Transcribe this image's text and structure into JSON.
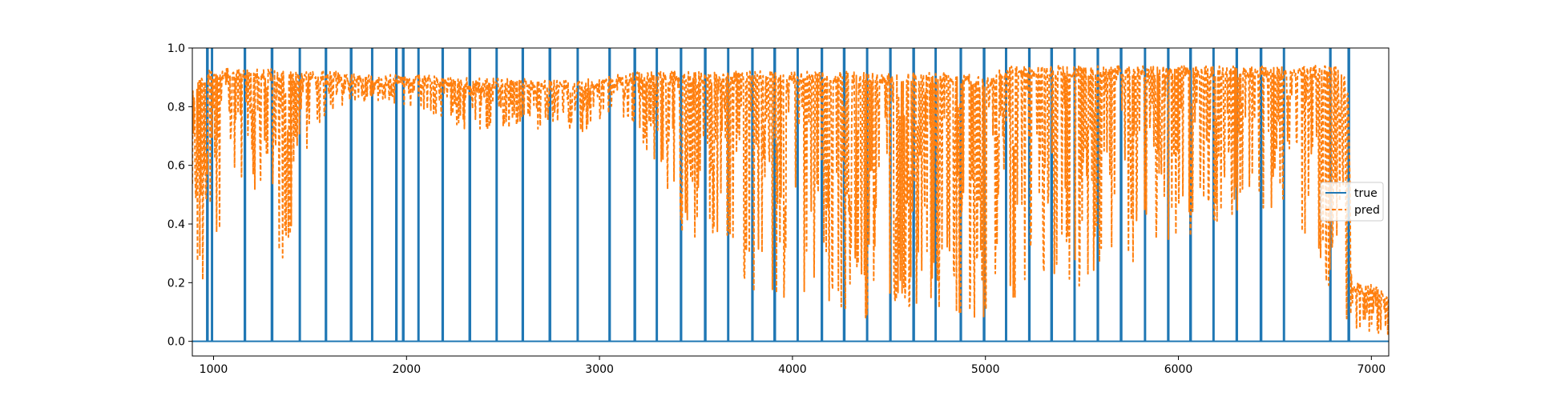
{
  "chart_data": {
    "type": "line",
    "title": "",
    "xlabel": "",
    "ylabel": "",
    "xlim": [
      890,
      7090
    ],
    "ylim": [
      -0.05,
      1.0
    ],
    "grid": false,
    "legend_position": "center-right",
    "x_ticks": [
      1000,
      2000,
      3000,
      4000,
      5000,
      6000,
      7000
    ],
    "x_tick_labels": [
      "1000",
      "2000",
      "3000",
      "4000",
      "5000",
      "6000",
      "7000"
    ],
    "y_ticks": [
      0.0,
      0.2,
      0.4,
      0.6,
      0.8,
      1.0
    ],
    "y_tick_labels": [
      "0.0",
      "0.2",
      "0.4",
      "0.6",
      "0.8",
      "1.0"
    ],
    "series": [
      {
        "name": "true",
        "color": "#1f77b4",
        "style": "solid",
        "baseline": 0,
        "pulse_x": [
          965,
          990,
          1160,
          1300,
          1445,
          1580,
          1710,
          1820,
          1945,
          1980,
          2060,
          2185,
          2325,
          2465,
          2600,
          2740,
          2885,
          3050,
          3180,
          3295,
          3420,
          3545,
          3665,
          3790,
          3905,
          4025,
          4150,
          4265,
          4385,
          4505,
          4625,
          4740,
          4870,
          4990,
          5105,
          5225,
          5340,
          5460,
          5580,
          5700,
          5825,
          5945,
          6060,
          6180,
          6300,
          6425,
          6545,
          6785,
          6880
        ],
        "pulse_value": 1
      },
      {
        "name": "pred",
        "color": "#ff7f0e",
        "style": "dashed",
        "x_start": 890,
        "x_end": 7090,
        "profile_x": [
          890,
          920,
          960,
          1000,
          1050,
          1100,
          1200,
          1260,
          1300,
          1350,
          1400,
          1450,
          1500,
          1600,
          1700,
          1800,
          1900,
          2000,
          2100,
          2200,
          2300,
          2400,
          2500,
          2600,
          2700,
          2800,
          2900,
          3000,
          3100,
          3200,
          3300,
          3400,
          3500,
          3600,
          3700,
          3800,
          3900,
          4000,
          4100,
          4200,
          4300,
          4400,
          4500,
          4600,
          4700,
          4800,
          4900,
          5000,
          5050,
          5100,
          5200,
          5300,
          5400,
          5500,
          5600,
          5700,
          5800,
          5900,
          6000,
          6100,
          6200,
          6300,
          6400,
          6500,
          6600,
          6700,
          6800,
          6850,
          6880,
          6900,
          6950,
          7000,
          7090
        ],
        "profile_top": [
          0.85,
          0.9,
          0.92,
          0.93,
          0.93,
          0.93,
          0.93,
          0.93,
          0.93,
          0.92,
          0.92,
          0.92,
          0.92,
          0.92,
          0.92,
          0.91,
          0.91,
          0.91,
          0.91,
          0.9,
          0.9,
          0.9,
          0.9,
          0.9,
          0.89,
          0.89,
          0.89,
          0.9,
          0.91,
          0.92,
          0.92,
          0.92,
          0.92,
          0.92,
          0.92,
          0.93,
          0.92,
          0.92,
          0.92,
          0.92,
          0.92,
          0.92,
          0.92,
          0.92,
          0.92,
          0.92,
          0.92,
          0.9,
          0.92,
          0.94,
          0.94,
          0.94,
          0.94,
          0.94,
          0.94,
          0.94,
          0.94,
          0.94,
          0.94,
          0.94,
          0.94,
          0.94,
          0.94,
          0.94,
          0.94,
          0.94,
          0.94,
          0.94,
          0.85,
          0.2,
          0.2,
          0.2,
          0.15
        ],
        "profile_floor": [
          0.1,
          0.06,
          0.12,
          0.2,
          0.35,
          0.5,
          0.55,
          0.4,
          0.2,
          0.15,
          0.3,
          0.55,
          0.7,
          0.78,
          0.8,
          0.82,
          0.82,
          0.8,
          0.78,
          0.75,
          0.72,
          0.7,
          0.72,
          0.74,
          0.72,
          0.7,
          0.7,
          0.75,
          0.78,
          0.72,
          0.55,
          0.4,
          0.25,
          0.2,
          0.18,
          0.15,
          0.15,
          0.12,
          0.12,
          0.1,
          0.08,
          0.08,
          0.08,
          0.08,
          0.08,
          0.08,
          0.08,
          0.08,
          0.2,
          0.15,
          0.15,
          0.15,
          0.15,
          0.18,
          0.2,
          0.2,
          0.25,
          0.3,
          0.35,
          0.35,
          0.4,
          0.4,
          0.45,
          0.45,
          0.4,
          0.3,
          0.15,
          0.1,
          0.05,
          0.03,
          0.03,
          0.03,
          0.02
        ]
      }
    ]
  }
}
